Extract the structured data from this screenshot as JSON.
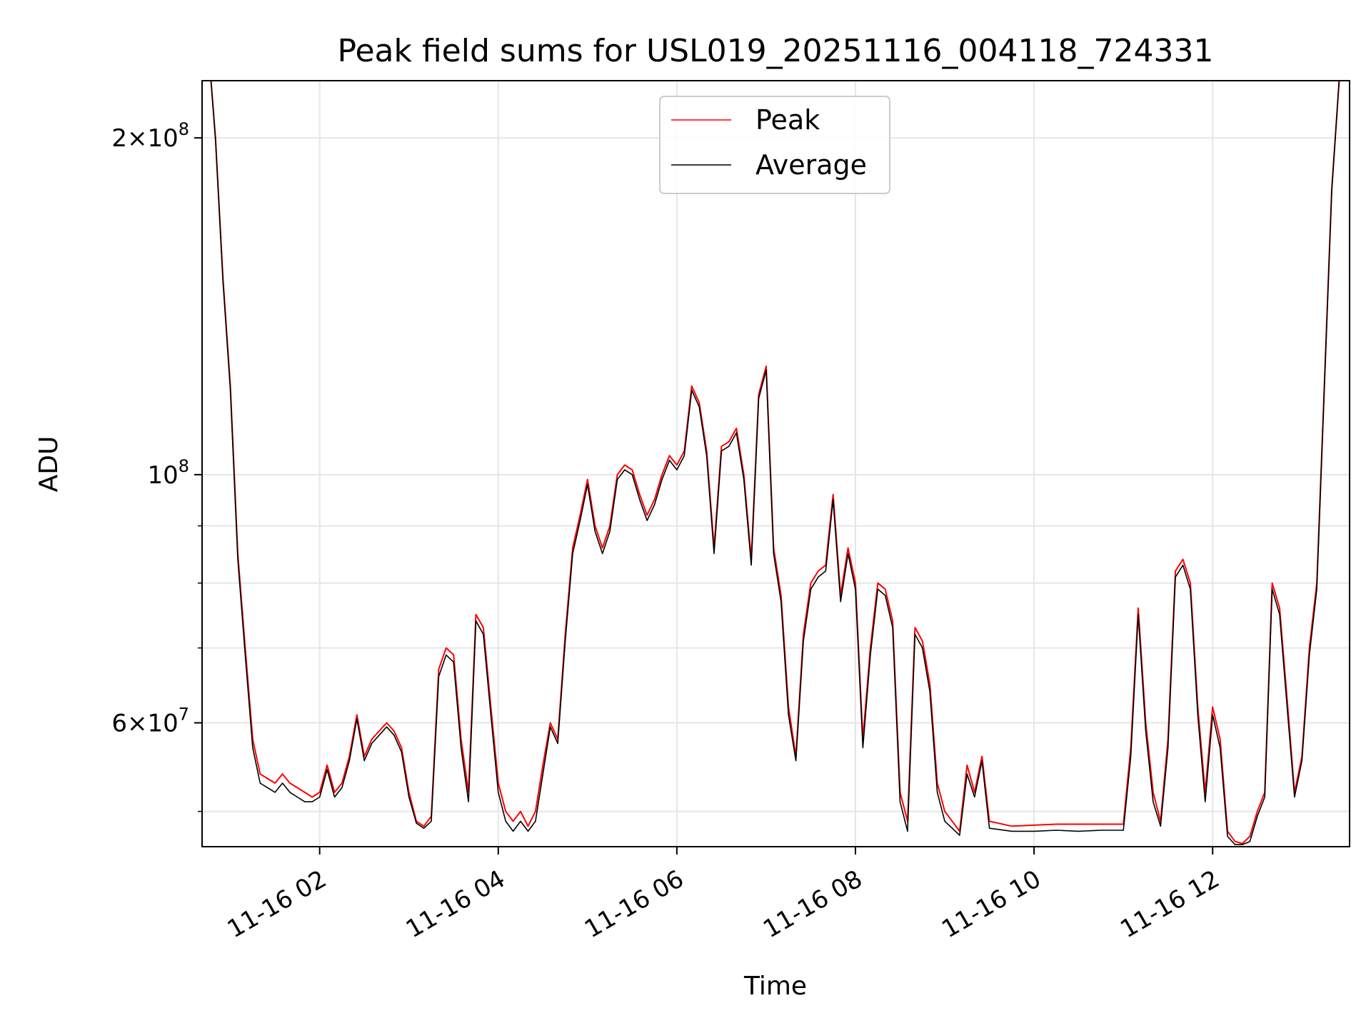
{
  "chart_data": {
    "type": "line",
    "title": "Peak field sums for USL019_20251116_004118_724331",
    "xlabel": "Time",
    "ylabel": "ADU",
    "yscale": "log",
    "grid": true,
    "legend_position": "top-center",
    "xlim": [
      "2025-11-16 00:41",
      "2025-11-16 13:32"
    ],
    "ylim": [
      46500000,
      225000000
    ],
    "x_ticks": [
      "11-16 02",
      "11-16 04",
      "11-16 06",
      "11-16 08",
      "11-16 10",
      "11-16 12"
    ],
    "y_ticks": [
      {
        "value": 200000000,
        "base": "2×10",
        "exp": "8"
      },
      {
        "value": 100000000,
        "base": "10",
        "exp": "8"
      },
      {
        "value": 60000000,
        "base": "6×10",
        "exp": "7"
      }
    ],
    "series": [
      {
        "name": "Peak",
        "color": "#ff0000",
        "x": [
          "00:47",
          "00:50",
          "00:55",
          "01:00",
          "01:05",
          "01:10",
          "01:15",
          "01:20",
          "01:25",
          "01:30",
          "01:35",
          "01:40",
          "01:45",
          "01:50",
          "01:55",
          "02:00",
          "02:05",
          "02:10",
          "02:15",
          "02:20",
          "02:25",
          "02:30",
          "02:35",
          "02:40",
          "02:45",
          "02:50",
          "02:55",
          "03:00",
          "03:05",
          "03:10",
          "03:15",
          "03:20",
          "03:25",
          "03:30",
          "03:35",
          "03:40",
          "03:45",
          "03:50",
          "03:55",
          "04:00",
          "04:05",
          "04:10",
          "04:15",
          "04:20",
          "04:25",
          "04:30",
          "04:35",
          "04:40",
          "04:45",
          "04:50",
          "04:55",
          "05:00",
          "05:05",
          "05:10",
          "05:15",
          "05:20",
          "05:25",
          "05:30",
          "05:35",
          "05:40",
          "05:45",
          "05:50",
          "05:55",
          "06:00",
          "06:05",
          "06:10",
          "06:15",
          "06:20",
          "06:25",
          "06:30",
          "06:35",
          "06:40",
          "06:45",
          "06:50",
          "06:55",
          "07:00",
          "07:05",
          "07:10",
          "07:15",
          "07:20",
          "07:25",
          "07:30",
          "07:35",
          "07:40",
          "07:45",
          "07:50",
          "07:55",
          "08:00",
          "08:05",
          "08:10",
          "08:15",
          "08:20",
          "08:25",
          "08:30",
          "08:35",
          "08:40",
          "08:45",
          "08:50",
          "08:55",
          "09:00",
          "09:05",
          "09:10",
          "09:15",
          "09:20",
          "09:25",
          "09:30",
          "09:45",
          "10:00",
          "10:15",
          "10:30",
          "10:45",
          "11:00",
          "11:05",
          "11:10",
          "11:15",
          "11:20",
          "11:25",
          "11:30",
          "11:35",
          "11:40",
          "11:45",
          "11:50",
          "11:55",
          "12:00",
          "12:05",
          "12:10",
          "12:15",
          "12:20",
          "12:25",
          "12:30",
          "12:35",
          "12:40",
          "12:45",
          "12:50",
          "12:55",
          "13:00",
          "13:05",
          "13:10",
          "13:15",
          "13:20",
          "13:25",
          "13:30"
        ],
        "values": [
          225000000,
          200000000,
          150000000,
          120000000,
          85000000,
          70000000,
          58000000,
          54000000,
          53500000,
          53000000,
          54000000,
          53000000,
          52500000,
          52000000,
          51500000,
          52000000,
          55000000,
          52000000,
          53000000,
          56000000,
          61000000,
          56000000,
          58000000,
          59000000,
          60000000,
          59000000,
          57000000,
          52000000,
          49000000,
          48500000,
          49500000,
          67000000,
          70000000,
          69000000,
          58000000,
          52000000,
          75000000,
          73000000,
          62000000,
          53000000,
          50000000,
          49000000,
          50000000,
          48500000,
          50000000,
          55000000,
          60000000,
          58000000,
          72000000,
          86000000,
          92000000,
          99000000,
          90000000,
          86000000,
          90000000,
          100000000,
          102000000,
          101000000,
          96000000,
          92000000,
          95000000,
          100000000,
          104000000,
          102000000,
          105000000,
          120000000,
          116000000,
          105000000,
          86000000,
          106000000,
          107000000,
          110000000,
          100000000,
          84000000,
          118000000,
          125000000,
          86000000,
          78000000,
          62000000,
          56000000,
          72000000,
          80000000,
          82000000,
          83000000,
          96000000,
          78000000,
          86000000,
          80000000,
          58000000,
          70000000,
          80000000,
          79000000,
          74000000,
          52000000,
          49000000,
          73000000,
          71000000,
          65000000,
          53000000,
          50000000,
          49000000,
          48000000,
          55000000,
          52000000,
          56000000,
          49000000,
          48500000,
          48600000,
          48700000,
          48700000,
          48700000,
          48700000,
          57000000,
          76000000,
          60000000,
          52000000,
          49000000,
          58000000,
          82000000,
          84000000,
          80000000,
          62000000,
          52000000,
          62000000,
          58000000,
          48000000,
          47000000,
          46800000,
          47500000,
          50000000,
          52000000,
          80000000,
          76000000,
          63000000,
          52000000,
          56000000,
          70000000,
          80000000,
          120000000,
          180000000,
          225000000,
          225000000
        ]
      },
      {
        "name": "Average",
        "color": "#000000",
        "x": [
          "00:47",
          "00:50",
          "00:55",
          "01:00",
          "01:05",
          "01:10",
          "01:15",
          "01:20",
          "01:25",
          "01:30",
          "01:35",
          "01:40",
          "01:45",
          "01:50",
          "01:55",
          "02:00",
          "02:05",
          "02:10",
          "02:15",
          "02:20",
          "02:25",
          "02:30",
          "02:35",
          "02:40",
          "02:45",
          "02:50",
          "02:55",
          "03:00",
          "03:05",
          "03:10",
          "03:15",
          "03:20",
          "03:25",
          "03:30",
          "03:35",
          "03:40",
          "03:45",
          "03:50",
          "03:55",
          "04:00",
          "04:05",
          "04:10",
          "04:15",
          "04:20",
          "04:25",
          "04:30",
          "04:35",
          "04:40",
          "04:45",
          "04:50",
          "04:55",
          "05:00",
          "05:05",
          "05:10",
          "05:15",
          "05:20",
          "05:25",
          "05:30",
          "05:35",
          "05:40",
          "05:45",
          "05:50",
          "05:55",
          "06:00",
          "06:05",
          "06:10",
          "06:15",
          "06:20",
          "06:25",
          "06:30",
          "06:35",
          "06:40",
          "06:45",
          "06:50",
          "06:55",
          "07:00",
          "07:05",
          "07:10",
          "07:15",
          "07:20",
          "07:25",
          "07:30",
          "07:35",
          "07:40",
          "07:45",
          "07:50",
          "07:55",
          "08:00",
          "08:05",
          "08:10",
          "08:15",
          "08:20",
          "08:25",
          "08:30",
          "08:35",
          "08:40",
          "08:45",
          "08:50",
          "08:55",
          "09:00",
          "09:05",
          "09:10",
          "09:15",
          "09:20",
          "09:25",
          "09:30",
          "09:45",
          "10:00",
          "10:15",
          "10:30",
          "10:45",
          "11:00",
          "11:05",
          "11:10",
          "11:15",
          "11:20",
          "11:25",
          "11:30",
          "11:35",
          "11:40",
          "11:45",
          "11:50",
          "11:55",
          "12:00",
          "12:05",
          "12:10",
          "12:15",
          "12:20",
          "12:25",
          "12:30",
          "12:35",
          "12:40",
          "12:45",
          "12:50",
          "12:55",
          "13:00",
          "13:05",
          "13:10",
          "13:15",
          "13:20",
          "13:25",
          "13:30"
        ],
        "values": [
          225000000,
          199000000,
          149000000,
          119000000,
          84000000,
          69000000,
          57000000,
          53000000,
          52500000,
          52000000,
          53000000,
          52000000,
          51500000,
          51000000,
          51000000,
          51500000,
          54500000,
          51500000,
          52500000,
          55500000,
          60500000,
          55500000,
          57500000,
          58500000,
          59500000,
          58500000,
          56500000,
          51500000,
          48800000,
          48300000,
          49000000,
          66000000,
          69000000,
          68000000,
          57000000,
          51000000,
          74000000,
          72000000,
          61000000,
          52000000,
          49000000,
          48000000,
          49000000,
          48000000,
          49000000,
          54000000,
          59500000,
          57500000,
          71000000,
          85000000,
          91000000,
          98000000,
          89000000,
          85000000,
          89000000,
          99000000,
          101000000,
          100000000,
          95000000,
          91000000,
          94000000,
          99000000,
          103000000,
          101000000,
          104000000,
          119000000,
          115000000,
          104000000,
          85000000,
          105000000,
          106000000,
          109000000,
          99000000,
          83000000,
          117000000,
          124000000,
          85000000,
          77000000,
          61000000,
          55500000,
          71000000,
          79000000,
          81000000,
          82000000,
          95000000,
          77000000,
          85000000,
          79000000,
          57000000,
          69000000,
          79000000,
          78000000,
          73000000,
          51000000,
          48000000,
          72000000,
          70000000,
          64000000,
          52000000,
          49000000,
          48300000,
          47600000,
          54000000,
          51500000,
          55500000,
          48300000,
          48000000,
          48000000,
          48100000,
          48000000,
          48100000,
          48100000,
          56000000,
          75000000,
          59000000,
          51000000,
          48500000,
          57000000,
          81000000,
          83000000,
          79000000,
          61000000,
          51000000,
          61000000,
          57000000,
          47500000,
          46700000,
          46700000,
          47000000,
          49500000,
          51500000,
          79000000,
          75000000,
          62000000,
          51500000,
          55500000,
          69000000,
          79000000,
          119000000,
          179000000,
          225000000,
          225000000
        ]
      }
    ]
  }
}
